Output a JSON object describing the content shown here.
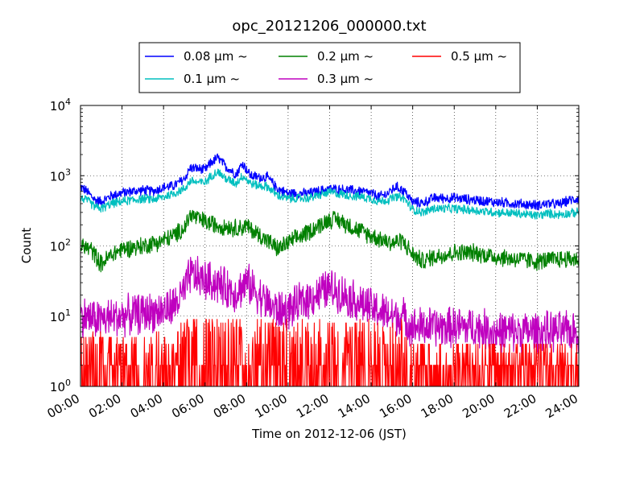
{
  "chart_data": {
    "type": "line",
    "title": "opc_20121206_000000.txt",
    "xlabel": "Time on 2012-12-06 (JST)",
    "ylabel": "Count",
    "x_unit": "hours",
    "xlim": [
      0,
      24
    ],
    "ylim": [
      1,
      10000
    ],
    "yscale": "log",
    "grid": true,
    "legend_position": "top-center",
    "x_ticks": [
      "00:00",
      "02:00",
      "04:00",
      "06:00",
      "08:00",
      "10:00",
      "12:00",
      "14:00",
      "16:00",
      "18:00",
      "20:00",
      "22:00",
      "24:00"
    ],
    "y_ticks": [
      {
        "base": "10",
        "exp": "0",
        "value": 1
      },
      {
        "base": "10",
        "exp": "1",
        "value": 10
      },
      {
        "base": "10",
        "exp": "2",
        "value": 100
      },
      {
        "base": "10",
        "exp": "3",
        "value": 1000
      },
      {
        "base": "10",
        "exp": "4",
        "value": 10000
      }
    ],
    "series": [
      {
        "name": "0.08 μm ~",
        "color": "#0000ff",
        "x": [
          0,
          0.3,
          0.7,
          1,
          1.5,
          2,
          2.5,
          3,
          3.5,
          4,
          4.5,
          5,
          5.3,
          5.7,
          6,
          6.3,
          6.6,
          7,
          7.5,
          7.8,
          8.2,
          8.6,
          9,
          9.5,
          10,
          11,
          12,
          13,
          13.5,
          14,
          14.4,
          14.8,
          15.2,
          15.6,
          16,
          16.5,
          17,
          18,
          19,
          20,
          21,
          22,
          22.5,
          23,
          23.5,
          24
        ],
        "y": [
          700,
          600,
          450,
          430,
          520,
          570,
          600,
          620,
          600,
          680,
          720,
          900,
          1300,
          1250,
          1200,
          1550,
          1800,
          1350,
          1050,
          1500,
          1000,
          950,
          950,
          650,
          560,
          560,
          650,
          620,
          600,
          560,
          500,
          560,
          700,
          600,
          420,
          410,
          480,
          480,
          450,
          420,
          400,
          380,
          400,
          390,
          440,
          480
        ]
      },
      {
        "name": "0.1 μm ~",
        "color": "#00bfbf",
        "x": [
          0,
          0.3,
          0.7,
          1,
          1.5,
          2,
          2.5,
          3,
          3.5,
          4,
          4.5,
          5,
          5.3,
          5.7,
          6,
          6.3,
          6.6,
          7,
          7.5,
          7.8,
          8.2,
          8.6,
          9,
          9.5,
          10,
          11,
          12,
          13,
          13.5,
          14,
          14.4,
          14.8,
          15.2,
          15.6,
          16,
          16.5,
          17,
          18,
          19,
          20,
          21,
          22,
          22.5,
          23,
          23.5,
          24
        ],
        "y": [
          480,
          450,
          360,
          340,
          400,
          430,
          450,
          470,
          460,
          500,
          560,
          650,
          850,
          800,
          800,
          1000,
          1150,
          900,
          780,
          1000,
          780,
          720,
          700,
          520,
          470,
          480,
          580,
          520,
          500,
          470,
          430,
          450,
          500,
          470,
          330,
          300,
          340,
          340,
          320,
          300,
          290,
          270,
          290,
          280,
          290,
          300
        ]
      },
      {
        "name": "0.2 μm ~",
        "color": "#008000",
        "x": [
          0,
          0.5,
          1,
          1.5,
          2,
          3,
          4,
          4.5,
          5,
          5.3,
          5.7,
          6,
          6.5,
          7,
          7.5,
          8,
          8.5,
          9,
          9.5,
          10,
          11,
          12,
          12.5,
          13,
          14,
          15,
          15.5,
          16,
          16.5,
          17,
          18,
          19,
          20,
          21,
          22,
          23,
          24
        ],
        "y": [
          100,
          90,
          55,
          75,
          90,
          100,
          120,
          140,
          180,
          280,
          240,
          220,
          200,
          190,
          180,
          190,
          150,
          120,
          90,
          110,
          160,
          240,
          230,
          190,
          140,
          110,
          120,
          75,
          60,
          70,
          80,
          80,
          70,
          65,
          60,
          65,
          65
        ]
      },
      {
        "name": "0.3 μm ~",
        "color": "#bf00bf",
        "x": [
          0,
          1,
          2,
          3,
          4,
          4.5,
          5,
          5.3,
          5.7,
          6,
          6.5,
          7,
          7.5,
          8,
          8.5,
          9,
          9.5,
          10,
          11,
          12,
          12.5,
          13,
          14,
          15,
          15.5,
          16,
          17,
          18,
          19,
          20,
          21,
          22,
          23,
          24
        ],
        "y": [
          10,
          9,
          10,
          11,
          12,
          14,
          22,
          40,
          35,
          32,
          30,
          25,
          22,
          30,
          22,
          15,
          12,
          12,
          18,
          25,
          22,
          18,
          13,
          10,
          10,
          7,
          7,
          7,
          7,
          6,
          6,
          6,
          6,
          6
        ]
      },
      {
        "name": "0.5 μm ~",
        "color": "#ff0000",
        "x": [
          0,
          1,
          2,
          3,
          4,
          4.5,
          5,
          6,
          7,
          8,
          9,
          10,
          11,
          12,
          13,
          14,
          15,
          15.5,
          16,
          17,
          18,
          19,
          20,
          21,
          22,
          23,
          24
        ],
        "y": [
          2,
          2,
          2,
          2,
          2,
          2,
          3,
          4,
          3,
          3,
          3,
          3,
          3,
          3,
          3,
          3,
          3,
          3,
          1.5,
          1.5,
          1.5,
          1.5,
          1.5,
          1.5,
          1.5,
          1.5,
          1.5
        ]
      }
    ]
  }
}
